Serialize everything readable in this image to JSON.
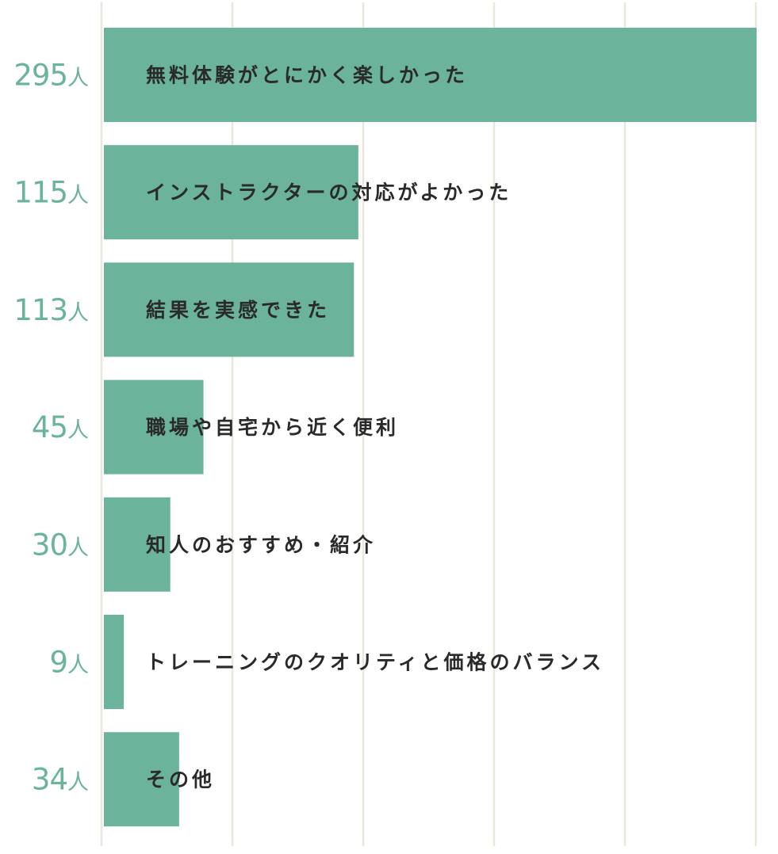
{
  "chart_data": {
    "type": "bar",
    "orientation": "horizontal",
    "categories": [
      "無料体験がとにかく楽しかった",
      "インストラクターの対応がよかった",
      "結果を実感できた",
      "職場や自宅から近く便利",
      "知人のおすすめ・紹介",
      "トレーニングのクオリティと価格のバランス",
      "その他"
    ],
    "values": [
      295,
      115,
      113,
      45,
      30,
      9,
      34
    ],
    "value_unit": "人",
    "value_labels": [
      "295",
      "115",
      "113",
      "45",
      "30",
      "9",
      "34"
    ],
    "xlim": [
      0,
      295
    ],
    "grid": true,
    "colors": {
      "bar": "#6bb39a",
      "grid": "#e9e7dc",
      "label": "#2a2a2a"
    }
  }
}
